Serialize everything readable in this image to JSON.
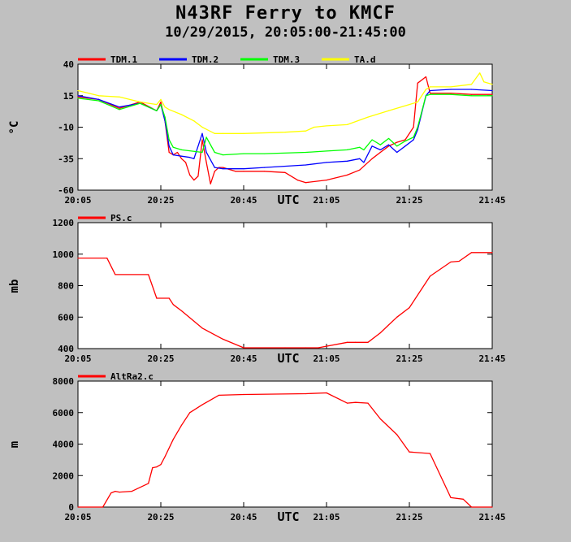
{
  "header": {
    "title": "N43RF Ferry to KMCF",
    "subtitle": "10/29/2015, 20:05:00-21:45:00"
  },
  "colors": {
    "background": "#c0c0c0",
    "plot_background": "#ffffff",
    "TDM.1": "#ff0000",
    "TDM.2": "#0000ff",
    "TDM.3": "#00ff00",
    "TA.d": "#ffff00",
    "PS.c": "#ff0000",
    "AltRa2.c": "#ff0000"
  },
  "chart_data": [
    {
      "type": "line",
      "ylabel": "°C",
      "xlabel": "UTC",
      "x_ticks": [
        "20:05",
        "20:25",
        "20:45",
        "21:05",
        "21:25",
        "21:45"
      ],
      "y_ticks": [
        "40",
        "15",
        "-10",
        "-35",
        "-60"
      ],
      "ylim": [
        -60,
        40
      ],
      "xlim": [
        "20:05",
        "21:45"
      ],
      "legend_position": "top",
      "grid": false,
      "series": [
        {
          "name": "TDM.1",
          "x": [
            "20:05",
            "20:10",
            "20:15",
            "20:20",
            "20:24",
            "20:25",
            "20:26",
            "20:27",
            "20:28",
            "20:29",
            "20:30",
            "20:31",
            "20:32",
            "20:33",
            "20:34",
            "20:35",
            "20:36",
            "20:37",
            "20:38",
            "20:39",
            "20:40",
            "20:43",
            "20:45",
            "20:50",
            "20:55",
            "20:58",
            "21:00",
            "21:05",
            "21:10",
            "21:13",
            "21:16",
            "21:18",
            "21:20",
            "21:22",
            "21:24",
            "21:26",
            "21:27",
            "21:29",
            "21:30",
            "21:35",
            "21:40",
            "21:45"
          ],
          "values": [
            14,
            12,
            5,
            10,
            3,
            10,
            -5,
            -30,
            -32,
            -30,
            -35,
            -38,
            -48,
            -52,
            -49,
            -20,
            -38,
            -55,
            -45,
            -42,
            -42,
            -45,
            -45,
            -45,
            -46,
            -52,
            -54,
            -52,
            -48,
            -44,
            -35,
            -30,
            -25,
            -22,
            -20,
            -10,
            25,
            30,
            17,
            17,
            16,
            16
          ]
        },
        {
          "name": "TDM.2",
          "x": [
            "20:05",
            "20:10",
            "20:15",
            "20:20",
            "20:24",
            "20:25",
            "20:26",
            "20:27",
            "20:28",
            "20:30",
            "20:32",
            "20:33",
            "20:35",
            "20:36",
            "20:38",
            "20:40",
            "20:45",
            "20:50",
            "21:00",
            "21:05",
            "21:10",
            "21:13",
            "21:14",
            "21:16",
            "21:18",
            "21:20",
            "21:22",
            "21:24",
            "21:26",
            "21:27",
            "21:29",
            "21:30",
            "21:35",
            "21:40",
            "21:45"
          ],
          "values": [
            15,
            12,
            6,
            9,
            3,
            8,
            -5,
            -25,
            -32,
            -33,
            -34,
            -35,
            -15,
            -30,
            -42,
            -43,
            -43,
            -42,
            -40,
            -38,
            -37,
            -35,
            -38,
            -25,
            -28,
            -24,
            -30,
            -25,
            -20,
            -12,
            15,
            19,
            20,
            20,
            19
          ]
        },
        {
          "name": "TDM.3",
          "x": [
            "20:05",
            "20:10",
            "20:15",
            "20:20",
            "20:24",
            "20:25",
            "20:26",
            "20:27",
            "20:28",
            "20:30",
            "20:35",
            "20:36",
            "20:38",
            "20:40",
            "20:45",
            "20:50",
            "21:00",
            "21:05",
            "21:10",
            "21:13",
            "21:14",
            "21:16",
            "21:18",
            "21:20",
            "21:22",
            "21:24",
            "21:26",
            "21:27",
            "21:29",
            "21:30",
            "21:35",
            "21:40",
            "21:45"
          ],
          "values": [
            13,
            11,
            4,
            9,
            3,
            8,
            -2,
            -20,
            -26,
            -28,
            -30,
            -18,
            -30,
            -32,
            -31,
            -31,
            -30,
            -29,
            -28,
            -26,
            -28,
            -20,
            -24,
            -19,
            -25,
            -21,
            -18,
            -10,
            15,
            16,
            16,
            15,
            15
          ]
        },
        {
          "name": "TA.d",
          "x": [
            "20:05",
            "20:10",
            "20:15",
            "20:20",
            "20:24",
            "20:25",
            "20:26",
            "20:27",
            "20:30",
            "20:33",
            "20:35",
            "20:38",
            "20:40",
            "20:45",
            "20:55",
            "21:00",
            "21:02",
            "21:05",
            "21:10",
            "21:15",
            "21:20",
            "21:25",
            "21:27",
            "21:29",
            "21:30",
            "21:35",
            "21:40",
            "21:42",
            "21:43",
            "21:45"
          ],
          "values": [
            19,
            15,
            14,
            10,
            8,
            12,
            6,
            4,
            0,
            -5,
            -10,
            -15,
            -15,
            -15,
            -14,
            -13,
            -10,
            -9,
            -8,
            -2,
            3,
            8,
            10,
            20,
            22,
            22,
            24,
            33,
            26,
            24
          ]
        }
      ]
    },
    {
      "type": "line",
      "ylabel": "mb",
      "xlabel": "UTC",
      "x_ticks": [
        "20:05",
        "20:25",
        "20:45",
        "21:05",
        "21:25",
        "21:45"
      ],
      "y_ticks": [
        "1200",
        "1000",
        "800",
        "600",
        "400"
      ],
      "ylim": [
        400,
        1200
      ],
      "xlim": [
        "20:05",
        "21:45"
      ],
      "legend_position": "top",
      "grid": false,
      "series": [
        {
          "name": "PS.c",
          "x": [
            "20:05",
            "20:12",
            "20:14",
            "20:22",
            "20:24",
            "20:27",
            "20:28",
            "20:30",
            "20:35",
            "20:40",
            "20:45",
            "20:55",
            "21:00",
            "21:03",
            "21:10",
            "21:12",
            "21:15",
            "21:18",
            "21:20",
            "21:22",
            "21:25",
            "21:30",
            "21:35",
            "21:37",
            "21:40",
            "21:45"
          ],
          "values": [
            975,
            975,
            870,
            870,
            720,
            720,
            680,
            640,
            530,
            460,
            405,
            405,
            405,
            405,
            440,
            440,
            440,
            500,
            550,
            600,
            660,
            860,
            950,
            955,
            1010,
            1010
          ]
        }
      ]
    },
    {
      "type": "line",
      "ylabel": "m",
      "xlabel": "UTC",
      "x_ticks": [
        "20:05",
        "20:25",
        "20:45",
        "21:05",
        "21:25",
        "21:45"
      ],
      "y_ticks": [
        "8000",
        "6000",
        "4000",
        "2000",
        "0"
      ],
      "ylim": [
        0,
        8000
      ],
      "xlim": [
        "20:05",
        "21:45"
      ],
      "legend_position": "top",
      "grid": false,
      "series": [
        {
          "name": "AltRa2.c",
          "x": [
            "20:05",
            "20:11",
            "20:13",
            "20:14",
            "20:15",
            "20:18",
            "20:22",
            "20:23",
            "20:24",
            "20:25",
            "20:26",
            "20:28",
            "20:30",
            "20:32",
            "20:35",
            "20:39",
            "20:45",
            "21:00",
            "21:05",
            "21:10",
            "21:12",
            "21:15",
            "21:18",
            "21:22",
            "21:25",
            "21:30",
            "21:35",
            "21:38",
            "21:40",
            "21:45"
          ],
          "values": [
            0,
            0,
            900,
            1000,
            950,
            1000,
            1500,
            2500,
            2550,
            2700,
            3200,
            4300,
            5200,
            6000,
            6500,
            7100,
            7150,
            7200,
            7250,
            6600,
            6650,
            6600,
            5600,
            4600,
            3500,
            3400,
            600,
            500,
            0,
            0
          ]
        }
      ]
    }
  ]
}
